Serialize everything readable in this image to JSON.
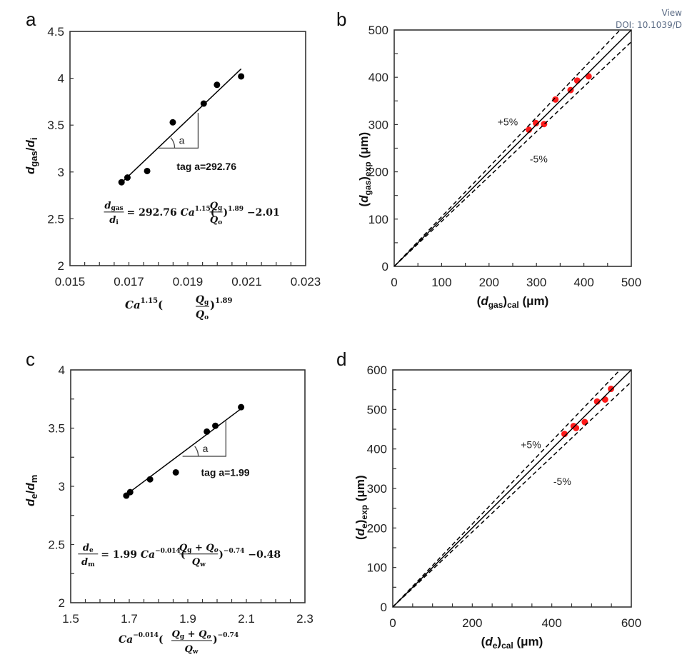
{
  "header": {
    "view_label": "View",
    "doi_label": "DOI: 10.1039/D"
  },
  "chart_data": [
    {
      "panel": "a",
      "type": "scatter",
      "title": "",
      "xlabel": "Ca^1.15 (Qg/Qo)^1.89",
      "ylabel": "dgas/di",
      "xlim": [
        0.015,
        0.023
      ],
      "ylim": [
        2,
        4.5
      ],
      "xticks": [
        "0.015",
        "0.017",
        "0.019",
        "0.021",
        "0.023"
      ],
      "yticks": [
        "2",
        "2.5",
        "3",
        "3.5",
        "4",
        "4.5"
      ],
      "grid": false,
      "series": [
        {
          "name": "data",
          "color": "#000000",
          "x": [
            0.01675,
            0.01695,
            0.01762,
            0.01849,
            0.01954,
            0.01999,
            0.02081
          ],
          "y": [
            2.89,
            2.94,
            3.01,
            3.53,
            3.73,
            3.93,
            4.02
          ]
        },
        {
          "name": "linear fit",
          "type": "line",
          "color": "#000000",
          "x": [
            0.01675,
            0.02081
          ],
          "y": [
            2.886,
            4.1
          ]
        }
      ],
      "slope_triangle": {
        "x0": 0.01802,
        "x1": 0.01935,
        "y0": 3.255,
        "y1": 3.63,
        "angle_label": "a"
      },
      "annotations": [
        {
          "text": "tag a=292.76",
          "x": 0.01862,
          "y": 3.02
        },
        {
          "text": "dgas/di = 292.76 Ca^1.15 (Qg/Qo)^1.89 −2.01",
          "x": 0.0162,
          "y": 2.55
        }
      ],
      "equation": {
        "lhs_num": "d",
        "lhs_num_sub": "gas",
        "lhs_den": "d",
        "lhs_den_sub": "i",
        "coef": "= 292.76",
        "ca": "Ca",
        "ca_exp": "1.15",
        "frac_num": "Q",
        "frac_num_sub": "g",
        "frac_den": "Q",
        "frac_den_sub": "o",
        "outer_exp": "1.89",
        "const": "−2.01"
      }
    },
    {
      "panel": "b",
      "type": "scatter",
      "title": "",
      "xlabel": "(dgas)cal (μm)",
      "ylabel": "(dgas)exp (μm)",
      "xlim": [
        0,
        500
      ],
      "ylim": [
        0,
        500
      ],
      "xticks": [
        "0",
        "100",
        "200",
        "300",
        "400",
        "500"
      ],
      "yticks": [
        "0",
        "100",
        "200",
        "300",
        "400",
        "500"
      ],
      "grid": false,
      "series": [
        {
          "name": "data",
          "color": "#ff1a1a",
          "x": [
            284,
            299,
            316,
            340,
            372,
            386,
            410
          ],
          "y": [
            289,
            303,
            301,
            353,
            373,
            393,
            402
          ]
        },
        {
          "name": "y = x",
          "type": "line",
          "slope": 1.0,
          "style": "solid",
          "color": "#000000"
        },
        {
          "name": "+5%",
          "type": "line",
          "slope": 1.05,
          "style": "dashed",
          "color": "#000000"
        },
        {
          "name": "-5%",
          "type": "line",
          "slope": 0.95,
          "style": "dashed",
          "color": "#000000"
        }
      ],
      "annotations": [
        {
          "text": "+5%",
          "x": 218,
          "y": 298
        },
        {
          "text": "-5%",
          "x": 286,
          "y": 220
        }
      ]
    },
    {
      "panel": "c",
      "type": "scatter",
      "title": "",
      "xlabel": "Ca^-0.014 ((Qg + Qo)/Qw)^-0.74",
      "ylabel": "de/dm",
      "xlim": [
        1.5,
        2.3
      ],
      "ylim": [
        2,
        4
      ],
      "xticks": [
        "1.5",
        "1.7",
        "1.9",
        "2.1",
        "2.3"
      ],
      "yticks": [
        "2",
        "2.5",
        "3",
        "3.5",
        "4"
      ],
      "grid": false,
      "series": [
        {
          "name": "data",
          "color": "#000000",
          "x": [
            1.69,
            1.703,
            1.771,
            1.859,
            1.965,
            1.994,
            2.082
          ],
          "y": [
            2.92,
            2.95,
            3.06,
            3.12,
            3.47,
            3.52,
            3.68
          ]
        },
        {
          "name": "linear fit",
          "type": "line",
          "color": "#000000",
          "x": [
            1.68,
            2.08
          ],
          "y": [
            2.91,
            3.663
          ]
        }
      ],
      "slope_triangle": {
        "x0": 1.882,
        "x1": 2.03,
        "y0": 3.258,
        "y1": 3.56,
        "angle_label": "a"
      },
      "annotations": [
        {
          "text": "tag a=1.99",
          "x": 1.945,
          "y": 3.09
        },
        {
          "text": "de/dm = 1.99 Ca^-0.014 ((Qg + Qo)/Qw)^-0.74 −0.48",
          "x": 1.53,
          "y": 2.4
        }
      ],
      "equation": {
        "lhs_num": "d",
        "lhs_num_sub": "e",
        "lhs_den": "d",
        "lhs_den_sub": "m",
        "coef": "= 1.99",
        "ca": "Ca",
        "ca_exp": "−0.014",
        "frac_num": "Q",
        "frac_num_sub": "g",
        "frac_num_plus": " + Q",
        "frac_num_sub2": "o",
        "frac_den": "Q",
        "frac_den_sub": "w",
        "outer_exp": "−0.74",
        "const": "−0.48"
      }
    },
    {
      "panel": "d",
      "type": "scatter",
      "title": "",
      "xlabel": "(de)cal (μm)",
      "ylabel": "(de)exp (μm)",
      "xlim": [
        0,
        600
      ],
      "ylim": [
        0,
        600
      ],
      "xticks": [
        "0",
        "200",
        "400",
        "600"
      ],
      "yticks": [
        "0",
        "100",
        "200",
        "300",
        "400",
        "500",
        "600"
      ],
      "grid": false,
      "series": [
        {
          "name": "data",
          "color": "#ff1a1a",
          "x": [
            432,
            455,
            461,
            483,
            514,
            534,
            549
          ],
          "y": [
            438,
            458,
            453,
            468,
            520,
            525,
            552
          ]
        },
        {
          "name": "y = x",
          "type": "line",
          "slope": 1.0,
          "style": "solid",
          "color": "#000000"
        },
        {
          "name": "+5%",
          "type": "line",
          "slope": 1.05,
          "style": "dashed",
          "color": "#000000"
        },
        {
          "name": "-5%",
          "type": "line",
          "slope": 0.95,
          "style": "dashed",
          "color": "#000000"
        }
      ],
      "annotations": [
        {
          "text": "+5%",
          "x": 322,
          "y": 402
        },
        {
          "text": "-5%",
          "x": 404,
          "y": 309
        }
      ]
    }
  ]
}
